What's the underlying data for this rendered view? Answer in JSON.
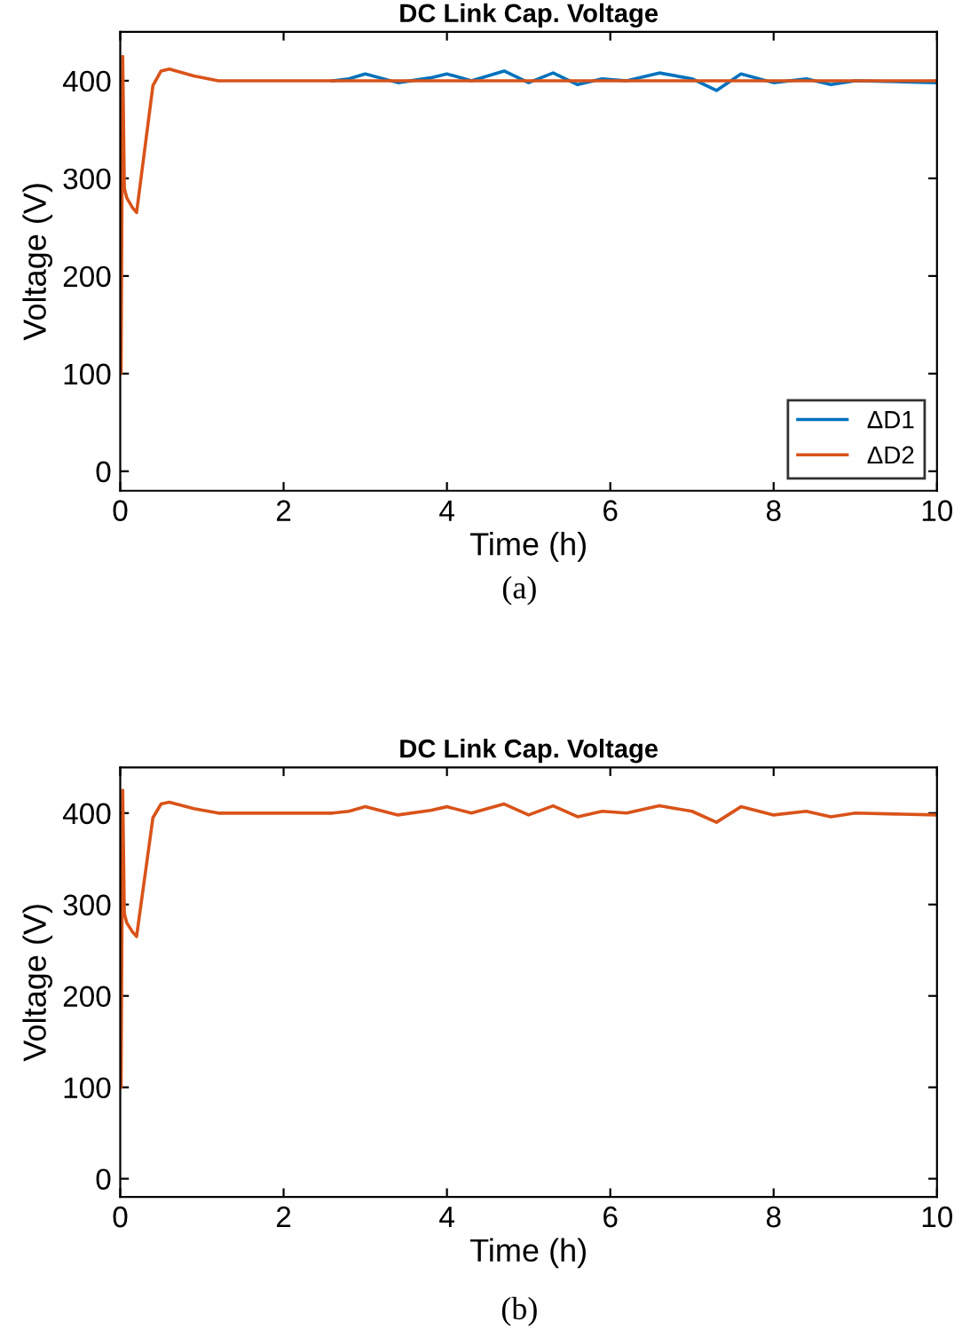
{
  "chart_data": [
    {
      "type": "line",
      "title": "DC Link Cap. Voltage",
      "xlabel": "Time (h)",
      "ylabel": "Voltage (V)",
      "annotations": [
        "(a)"
      ],
      "xlim": [
        0,
        10
      ],
      "ylim": [
        -20,
        450
      ],
      "xticks": [
        0,
        2,
        4,
        6,
        8,
        10
      ],
      "yticks": [
        0,
        100,
        200,
        300,
        400
      ],
      "grid": false,
      "legend": "bottom right",
      "series": [
        {
          "name": "ΔD1",
          "color": "#0072bd",
          "x": [
            2.6,
            2.8,
            3.0,
            3.4,
            3.8,
            4.0,
            4.3,
            4.7,
            5.0,
            5.3,
            5.6,
            5.9,
            6.2,
            6.6,
            7.0,
            7.3,
            7.6,
            8.0,
            8.4,
            8.7,
            9.0,
            9.5,
            10
          ],
          "values": [
            400,
            402,
            407,
            398,
            403,
            407,
            400,
            410,
            398,
            408,
            396,
            402,
            400,
            408,
            402,
            390,
            407,
            398,
            402,
            396,
            400,
            399,
            398
          ]
        },
        {
          "name": "ΔD2",
          "color": "#d95319",
          "x": [
            0,
            0.01,
            0.03,
            0.05,
            0.08,
            0.15,
            0.2,
            0.3,
            0.4,
            0.5,
            0.6,
            0.9,
            1.2,
            10
          ],
          "values": [
            180,
            100,
            425,
            290,
            280,
            270,
            265,
            330,
            395,
            410,
            412,
            405,
            400,
            400
          ]
        }
      ]
    },
    {
      "type": "line",
      "title": "DC Link Cap. Voltage",
      "xlabel": "Time (h)",
      "ylabel": "Voltage (V)",
      "annotations": [
        "(b)"
      ],
      "xlim": [
        0,
        10
      ],
      "ylim": [
        -20,
        450
      ],
      "xticks": [
        0,
        2,
        4,
        6,
        8,
        10
      ],
      "yticks": [
        0,
        100,
        200,
        300,
        400
      ],
      "grid": false,
      "series": [
        {
          "color": "#d95319",
          "x": [
            0,
            0.01,
            0.03,
            0.05,
            0.08,
            0.15,
            0.2,
            0.3,
            0.4,
            0.5,
            0.6,
            0.9,
            1.2,
            2.0,
            2.6,
            2.8,
            3.0,
            3.4,
            3.8,
            4.0,
            4.3,
            4.7,
            5.0,
            5.3,
            5.6,
            5.9,
            6.2,
            6.6,
            7.0,
            7.3,
            7.6,
            8.0,
            8.4,
            8.7,
            9.0,
            9.5,
            10
          ],
          "values": [
            180,
            100,
            425,
            290,
            280,
            270,
            265,
            330,
            395,
            410,
            412,
            405,
            400,
            400,
            400,
            402,
            407,
            398,
            403,
            407,
            400,
            410,
            398,
            408,
            396,
            402,
            400,
            408,
            402,
            390,
            407,
            398,
            402,
            396,
            400,
            399,
            398
          ]
        }
      ]
    }
  ]
}
